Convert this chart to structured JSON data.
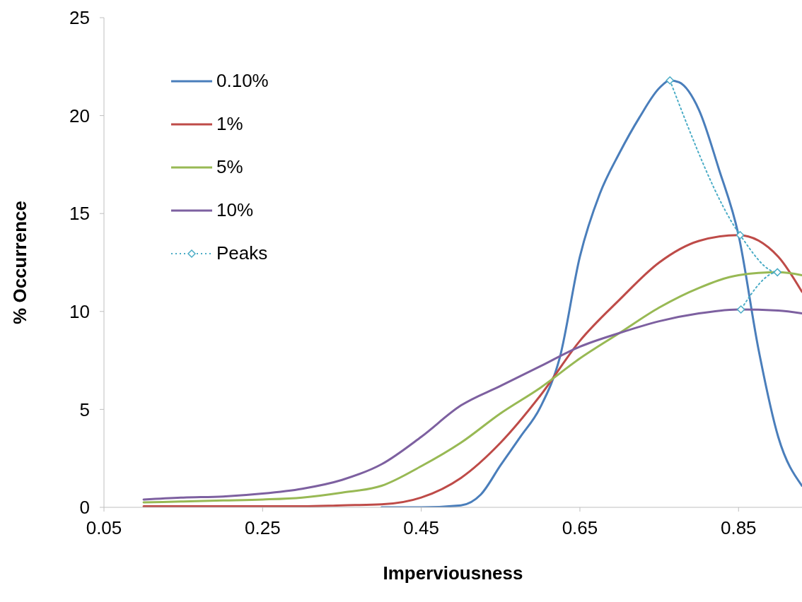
{
  "chart_data": {
    "type": "line",
    "xlabel": "Imperviousness",
    "ylabel": "% Occurrence",
    "x": [
      0.1,
      0.15,
      0.2,
      0.25,
      0.3,
      0.35,
      0.4,
      0.45,
      0.5,
      0.55,
      0.6,
      0.65,
      0.7,
      0.75,
      0.8,
      0.85,
      0.9,
      0.93
    ],
    "series": [
      {
        "name": "0.10%",
        "color": "#4a7ebb",
        "x": [
          0.4,
          0.45,
          0.5,
          0.525,
          0.55,
          0.575,
          0.6,
          0.625,
          0.65,
          0.675,
          0.7,
          0.725,
          0.75,
          0.7635,
          0.775,
          0.8,
          0.825,
          0.85,
          0.875,
          0.9,
          0.93
        ],
        "values": [
          0,
          0,
          0.1,
          0.65,
          2.15,
          3.6,
          5.1,
          7.7,
          12.8,
          16,
          18.1,
          19.9,
          21.4,
          21.8,
          21.7,
          20.3,
          17.3,
          13.9,
          8.1,
          3.6,
          1.1
        ]
      },
      {
        "name": "1%",
        "color": "#be4b48",
        "values": [
          0.05,
          0.05,
          0.05,
          0.05,
          0.05,
          0.1,
          0.15,
          0.5,
          1.5,
          3.3,
          5.7,
          8.5,
          10.6,
          12.5,
          13.6,
          13.9,
          12.8,
          11
        ]
      },
      {
        "name": "5%",
        "color": "#98b954",
        "values": [
          0.25,
          0.3,
          0.35,
          0.4,
          0.5,
          0.75,
          1.1,
          2.1,
          3.3,
          4.8,
          6.1,
          7.6,
          8.9,
          10.2,
          11.2,
          11.85,
          12,
          11.85
        ]
      },
      {
        "name": "10%",
        "color": "#7d60a0",
        "values": [
          0.4,
          0.5,
          0.55,
          0.7,
          0.95,
          1.4,
          2.2,
          3.6,
          5.2,
          6.2,
          7.2,
          8.2,
          8.9,
          9.5,
          9.9,
          10.1,
          10.05,
          9.9
        ]
      },
      {
        "name": "Peaks",
        "color": "#4bacc6",
        "x": [
          0.7635,
          0.852,
          0.899,
          0.853
        ],
        "values": [
          21.8,
          13.9,
          12,
          10.1
        ],
        "marker": "diamond",
        "line_style": "dotted"
      }
    ],
    "xlim": [
      0.05,
      0.93
    ],
    "xticks": [
      0.05,
      0.25,
      0.45,
      0.65,
      0.85
    ],
    "ylim": [
      0,
      25
    ],
    "yticks": [
      0,
      5,
      10,
      15,
      20,
      25
    ],
    "grid": false,
    "legend": "top left",
    "marker": "none",
    "line_style": "solid"
  }
}
